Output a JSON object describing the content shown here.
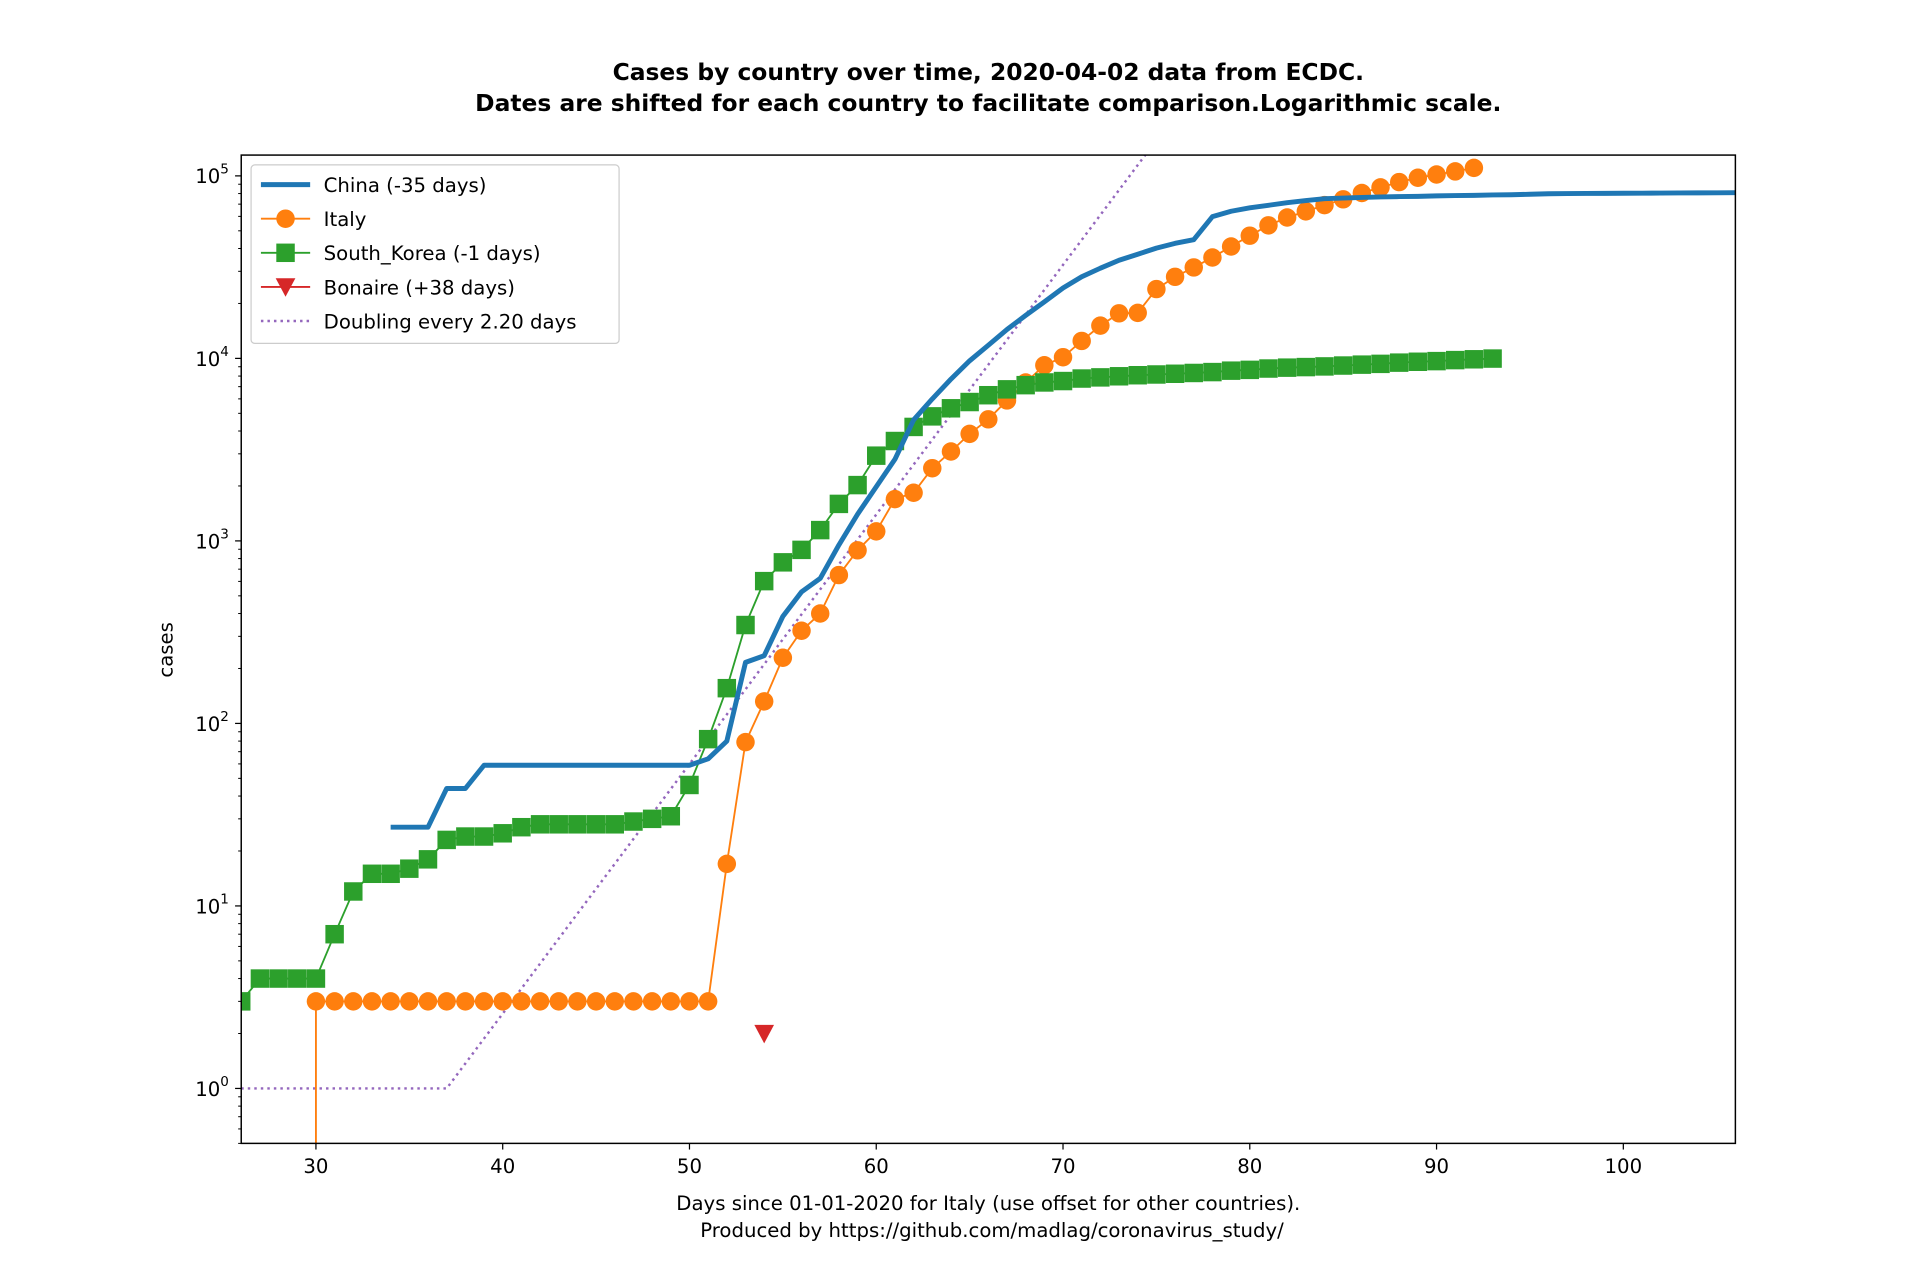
{
  "chart_data": {
    "type": "line",
    "title": [
      "Cases by country over time, 2020-04-02 data from ECDC.",
      "Dates are shifted for each country to facilitate comparison.Logarithmic scale."
    ],
    "xlabel": [
      "Days since 01-01-2020 for Italy (use offset for other countries).",
      "Produced by https://github.com/madlag/coronavirus_study/"
    ],
    "ylabel": "cases",
    "xlim": [
      26,
      106
    ],
    "ylim": [
      0.5,
      130000
    ],
    "yscale": "log",
    "grid": false,
    "legend_position": "top-left",
    "x_ticks": [
      30,
      40,
      50,
      60,
      70,
      80,
      90,
      100
    ],
    "x_tick_labels": [
      "30",
      "40",
      "50",
      "60",
      "70",
      "80",
      "90",
      "100"
    ],
    "y_ticks": [
      1,
      10,
      100,
      1000,
      10000,
      100000
    ],
    "y_tick_labels": [
      {
        "base": "10",
        "exp": "0"
      },
      {
        "base": "10",
        "exp": "1"
      },
      {
        "base": "10",
        "exp": "2"
      },
      {
        "base": "10",
        "exp": "3"
      },
      {
        "base": "10",
        "exp": "4"
      },
      {
        "base": "10",
        "exp": "5"
      }
    ],
    "series": [
      {
        "name": "China (-35 days)",
        "color": "#1f77b4",
        "marker": "none",
        "line": "solid",
        "width": 4,
        "x": [
          34,
          35,
          36,
          37,
          38,
          39,
          40,
          41,
          42,
          43,
          44,
          45,
          46,
          47,
          48,
          49,
          50,
          51,
          52,
          53,
          54,
          55,
          56,
          57,
          58,
          59,
          60,
          61,
          62,
          63,
          64,
          65,
          66,
          67,
          68,
          69,
          70,
          71,
          72,
          73,
          74,
          75,
          76,
          77,
          78,
          79,
          80,
          81,
          82,
          83,
          84,
          85,
          86,
          87,
          88,
          89,
          90,
          91,
          92,
          93,
          94,
          95,
          96,
          97,
          98,
          99,
          100,
          101,
          102,
          103,
          104,
          105,
          106
        ],
        "y": [
          27,
          27,
          27,
          44,
          44,
          59,
          59,
          59,
          59,
          59,
          59,
          59,
          59,
          59,
          59,
          59,
          59,
          64,
          80,
          216,
          235,
          386,
          526,
          623,
          950,
          1400,
          1980,
          2800,
          4600,
          6000,
          7700,
          9700,
          11800,
          14400,
          17200,
          20400,
          24300,
          28000,
          31200,
          34500,
          37200,
          40200,
          42700,
          44700,
          59800,
          64000,
          66800,
          69000,
          71300,
          73200,
          75000,
          75600,
          76200,
          76700,
          77000,
          77200,
          77700,
          78000,
          78200,
          78600,
          78800,
          79300,
          79800,
          80000,
          80100,
          80200,
          80300,
          80400,
          80500,
          80600,
          80700,
          80800,
          80900
        ]
      },
      {
        "name": "Italy",
        "color": "#ff7f0e",
        "marker": "circle",
        "line": "solid",
        "width": 1.5,
        "x": [
          29,
          30,
          31,
          32,
          33,
          34,
          35,
          36,
          37,
          38,
          39,
          40,
          41,
          42,
          43,
          44,
          45,
          46,
          47,
          48,
          49,
          50,
          51,
          52,
          53,
          54,
          55,
          56,
          57,
          58,
          59,
          60,
          61,
          62,
          63,
          64,
          65,
          66,
          67,
          68,
          69,
          70,
          71,
          72,
          73,
          74,
          75,
          76,
          77,
          78,
          79,
          80,
          81,
          82,
          83,
          84,
          85,
          86,
          87,
          88,
          89,
          90,
          91,
          92
        ],
        "y": [
          0,
          3,
          3,
          3,
          3,
          3,
          3,
          3,
          3,
          3,
          3,
          3,
          3,
          3,
          3,
          3,
          3,
          3,
          3,
          3,
          3,
          3,
          3,
          17,
          79,
          132,
          229,
          322,
          400,
          650,
          888,
          1128,
          1694,
          1835,
          2502,
          3089,
          3858,
          4636,
          5883,
          7375,
          9172,
          10149,
          12462,
          15113,
          17660,
          17750,
          23980,
          27980,
          31506,
          35713,
          41035,
          47021,
          53578,
          59138,
          63927,
          69176,
          74386,
          80539,
          86498,
          92472,
          97689,
          101739,
          105792,
          110574
        ]
      },
      {
        "name": "South_Korea (-1 days)",
        "color": "#2ca02c",
        "marker": "square",
        "line": "solid",
        "width": 1.5,
        "x": [
          26,
          27,
          28,
          29,
          30,
          31,
          32,
          33,
          34,
          35,
          36,
          37,
          38,
          39,
          40,
          41,
          42,
          43,
          44,
          45,
          46,
          47,
          48,
          49,
          50,
          51,
          52,
          53,
          54,
          55,
          56,
          57,
          58,
          59,
          60,
          61,
          62,
          63,
          64,
          65,
          66,
          67,
          68,
          69,
          70,
          71,
          72,
          73,
          74,
          75,
          76,
          77,
          78,
          79,
          80,
          81,
          82,
          83,
          84,
          85,
          86,
          87,
          88,
          89,
          90,
          91,
          92,
          93
        ],
        "y": [
          3,
          4,
          4,
          4,
          4,
          7,
          12,
          15,
          15,
          16,
          18,
          23,
          24,
          24,
          25,
          27,
          28,
          28,
          28,
          28,
          28,
          29,
          30,
          31,
          46,
          82,
          156,
          346,
          602,
          763,
          893,
          1146,
          1595,
          2022,
          2931,
          3526,
          4212,
          4812,
          5328,
          5766,
          6284,
          6767,
          7134,
          7382,
          7513,
          7755,
          7869,
          7979,
          8086,
          8162,
          8236,
          8320,
          8413,
          8565,
          8652,
          8799,
          8897,
          8961,
          9037,
          9137,
          9241,
          9332,
          9478,
          9583,
          9661,
          9786,
          9887,
          9976
        ]
      },
      {
        "name": "Bonaire (+38 days)",
        "color": "#d62728",
        "marker": "triangle-down",
        "line": "solid",
        "width": 1.5,
        "x": [
          54
        ],
        "y": [
          2
        ]
      },
      {
        "name": "Doubling every 2.20 days",
        "color": "#9467bd",
        "marker": "none",
        "line": "dotted",
        "width": 2,
        "x": [
          26,
          37,
          38,
          40,
          42,
          44,
          46,
          48,
          50,
          52,
          54,
          56,
          58,
          60,
          62,
          64,
          66,
          68,
          70,
          72,
          74,
          76
        ],
        "y": [
          1,
          1,
          1.37,
          2.57,
          4.83,
          9.07,
          17.0,
          31.9,
          59.9,
          112,
          211,
          396,
          743,
          1395,
          2619,
          4916,
          9229,
          17325,
          32520,
          61050,
          114600,
          215100
        ]
      }
    ]
  }
}
